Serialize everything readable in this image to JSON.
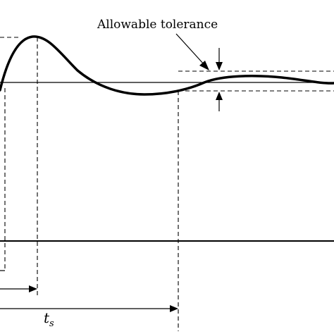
{
  "annotation": {
    "text": "Allowable tolerance"
  },
  "time_label": {
    "main": "t",
    "subscript": "s"
  },
  "colors": {
    "stroke": "#000000",
    "background": "#ffffff"
  }
}
